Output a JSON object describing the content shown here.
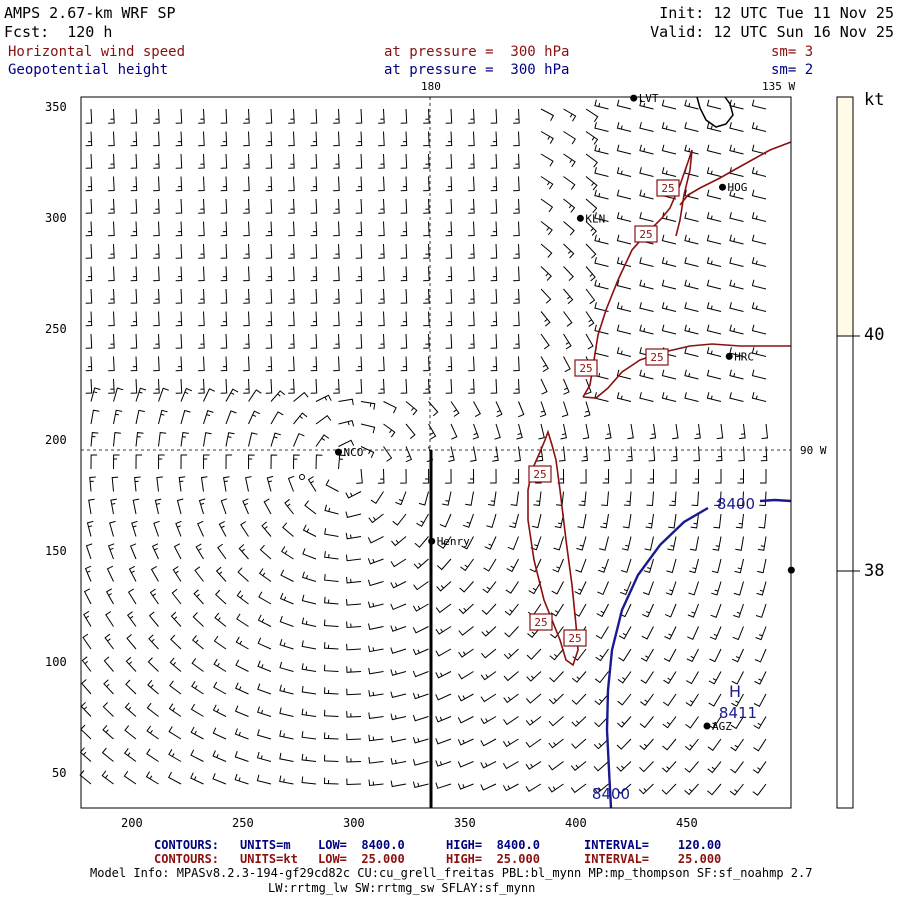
{
  "header": {
    "model": "AMPS 2.67-km WRF SP",
    "forecast": "Fcst:  120 h",
    "init": "Init: 12 UTC Tue 11 Nov 25",
    "valid": "Valid: 12 UTC Sun 16 Nov 25",
    "field1_name": "Horizontal wind speed",
    "field1_level": "at pressure =  300 hPa",
    "field1_sm": "sm= 3",
    "field2_name": "Geopotential height",
    "field2_level": "at pressure =  300 hPa",
    "field2_sm": "sm= 2"
  },
  "colors": {
    "wind_contour": "#8a1010",
    "height_contour": "#1a1a90",
    "colorbar_high": "#fffbe6"
  },
  "map": {
    "x_ticks": [
      "200",
      "250",
      "300",
      "350",
      "400",
      "450"
    ],
    "y_ticks": [
      "50",
      "100",
      "150",
      "200",
      "250",
      "300",
      "350"
    ],
    "meridian_180_label": "180",
    "meridian_135w_label": "135 W",
    "parallel_90w_label": "90 W",
    "stations": [
      {
        "name": "LVT",
        "x": 426,
        "y": 354
      },
      {
        "name": "KLN",
        "x": 402,
        "y": 300
      },
      {
        "name": "HOG",
        "x": 466,
        "y": 314
      },
      {
        "name": "HRC",
        "x": 469,
        "y": 238
      },
      {
        "name": "NCO",
        "x": 293,
        "y": 195
      },
      {
        "name": "Henry",
        "x": 335,
        "y": 155
      },
      {
        "name": "AGZ",
        "x": 459,
        "y": 72
      },
      {
        "name": "",
        "x": 497,
        "y": 142
      }
    ],
    "wind_contour_labels": [
      "25",
      "25",
      "25",
      "25",
      "25",
      "25",
      "25"
    ],
    "height_contour_labels": [
      "8400",
      "8400"
    ],
    "high_marker": "H",
    "high_value": "8411"
  },
  "colorbar": {
    "unit": "kt",
    "labels": [
      "40",
      "38"
    ]
  },
  "footer": {
    "contours1_label": "CONTOURS:",
    "contours1_units": "UNITS=m",
    "contours1_low": "LOW=  8400.0",
    "contours1_high": "HIGH=  8400.0",
    "contours1_interval": "INTERVAL=    120.00",
    "contours2_label": "CONTOURS:",
    "contours2_units": "UNITS=kt",
    "contours2_low": "LOW=  25.000",
    "contours2_high": "HIGH=  25.000",
    "contours2_interval": "INTERVAL=    25.000",
    "model_info_line1": "Model Info: MPASv8.2.3-194-gf29cd82c CU:cu_grell_freitas PBL:bl_mynn MP:mp_thompson SF:sf_noahmp 2.7",
    "model_info_line2": "LW:rrtmg_lw SW:rrtmg_sw SFLAY:sf_mynn"
  }
}
